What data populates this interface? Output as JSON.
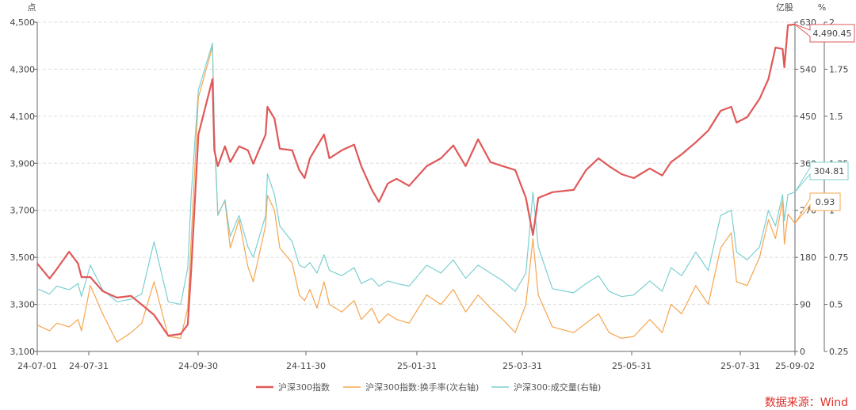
{
  "chart_data": {
    "type": "line",
    "title": "",
    "left_axis": {
      "unit": "点",
      "ylim": [
        3100,
        4500
      ],
      "ticks": [
        "3,100",
        "3,300",
        "3,500",
        "3,700",
        "3,900",
        "4,100",
        "4,300",
        "4,500"
      ]
    },
    "right_axis": {
      "unit": "亿股",
      "ylim": [
        0,
        630
      ],
      "ticks": [
        "0",
        "90",
        "180",
        "270",
        "360",
        "450",
        "540",
        "630"
      ]
    },
    "secondary_right_axis": {
      "unit": "%",
      "ylim": [
        0.25,
        2
      ],
      "ticks": [
        "0.25",
        "0.5",
        "0.75",
        "1",
        "1.25",
        "1.5",
        "1.75",
        "2"
      ]
    },
    "x_ticks": [
      "24-07-01",
      "24-07-31",
      "24-09-30",
      "24-11-30",
      "25-01-31",
      "25-03-31",
      "25-05-31",
      "25-07-31",
      "25-09-02"
    ],
    "grid": "horizontal dashed",
    "legend_placement": "bottom",
    "colors": {
      "index": "#e05858",
      "turnover": "#f5a54f",
      "volume": "#7ccfd0"
    },
    "series": [
      {
        "name": "沪深300指数",
        "axis": "left",
        "last_label": "4,490.45"
      },
      {
        "name": "沪深300指数:换手率(次右轴)",
        "axis": "secondary_right",
        "last_label": "0.93"
      },
      {
        "name": "沪深300:成交量(右轴)",
        "axis": "right",
        "last_label": "304.81"
      }
    ],
    "points": [
      [
        "2024-07-01",
        3474,
        0.39,
        120
      ],
      [
        "2024-07-08",
        3410,
        0.36,
        110
      ],
      [
        "2024-07-12",
        3450,
        0.4,
        125
      ],
      [
        "2024-07-19",
        3524,
        0.38,
        118
      ],
      [
        "2024-07-24",
        3474,
        0.42,
        130
      ],
      [
        "2024-07-26",
        3416,
        0.36,
        105
      ],
      [
        "2024-07-31",
        3416,
        0.6,
        165
      ],
      [
        "2024-08-07",
        3356,
        0.45,
        118
      ],
      [
        "2024-08-15",
        3329,
        0.3,
        95
      ],
      [
        "2024-08-23",
        3336,
        0.35,
        100
      ],
      [
        "2024-08-29",
        3299,
        0.4,
        110
      ],
      [
        "2024-09-05",
        3255,
        0.62,
        210
      ],
      [
        "2024-09-13",
        3167,
        0.33,
        95
      ],
      [
        "2024-09-20",
        3174,
        0.32,
        90
      ],
      [
        "2024-09-24",
        3214,
        0.48,
        160
      ],
      [
        "2024-09-26",
        3450,
        0.85,
        300
      ],
      [
        "2024-09-30",
        4022,
        1.6,
        500
      ],
      [
        "2024-10-08",
        4258,
        1.87,
        590
      ],
      [
        "2024-10-09",
        3955,
        1.4,
        430
      ],
      [
        "2024-10-11",
        3888,
        0.98,
        260
      ],
      [
        "2024-10-15",
        3972,
        1.05,
        290
      ],
      [
        "2024-10-18",
        3905,
        0.8,
        220
      ],
      [
        "2024-10-23",
        3972,
        0.95,
        260
      ],
      [
        "2024-10-28",
        3955,
        0.7,
        200
      ],
      [
        "2024-10-31",
        3898,
        0.62,
        180
      ],
      [
        "2024-11-07",
        4022,
        0.92,
        260
      ],
      [
        "2024-11-08",
        4140,
        1.08,
        340
      ],
      [
        "2024-11-12",
        4090,
        1.0,
        300
      ],
      [
        "2024-11-15",
        3962,
        0.8,
        240
      ],
      [
        "2024-11-22",
        3955,
        0.72,
        210
      ],
      [
        "2024-11-26",
        3871,
        0.55,
        165
      ],
      [
        "2024-11-29",
        3837,
        0.52,
        160
      ],
      [
        "2024-12-02",
        3921,
        0.58,
        170
      ],
      [
        "2024-12-06",
        3972,
        0.48,
        150
      ],
      [
        "2024-12-10",
        4022,
        0.62,
        185
      ],
      [
        "2024-12-13",
        3921,
        0.5,
        155
      ],
      [
        "2024-12-20",
        3955,
        0.46,
        145
      ],
      [
        "2024-12-27",
        3979,
        0.52,
        160
      ],
      [
        "2024-12-31",
        3888,
        0.42,
        130
      ],
      [
        "2025-01-06",
        3787,
        0.48,
        140
      ],
      [
        "2025-01-10",
        3736,
        0.4,
        125
      ],
      [
        "2025-01-15",
        3814,
        0.45,
        135
      ],
      [
        "2025-01-20",
        3834,
        0.42,
        130
      ],
      [
        "2025-01-27",
        3804,
        0.4,
        125
      ],
      [
        "2025-02-06",
        3888,
        0.55,
        165
      ],
      [
        "2025-02-14",
        3921,
        0.5,
        150
      ],
      [
        "2025-02-21",
        3976,
        0.58,
        175
      ],
      [
        "2025-02-28",
        3888,
        0.46,
        140
      ],
      [
        "2025-03-07",
        4002,
        0.55,
        165
      ],
      [
        "2025-03-14",
        3905,
        0.48,
        150
      ],
      [
        "2025-03-21",
        3888,
        0.42,
        135
      ],
      [
        "2025-03-28",
        3871,
        0.35,
        115
      ],
      [
        "2025-04-03",
        3753,
        0.5,
        150
      ],
      [
        "2025-04-07",
        3595,
        0.85,
        305
      ],
      [
        "2025-04-10",
        3753,
        0.55,
        200
      ],
      [
        "2025-04-18",
        3777,
        0.38,
        120
      ],
      [
        "2025-04-30",
        3787,
        0.35,
        112
      ],
      [
        "2025-05-07",
        3871,
        0.4,
        130
      ],
      [
        "2025-05-14",
        3921,
        0.45,
        145
      ],
      [
        "2025-05-20",
        3888,
        0.35,
        115
      ],
      [
        "2025-05-27",
        3854,
        0.32,
        105
      ],
      [
        "2025-06-03",
        3837,
        0.33,
        108
      ],
      [
        "2025-06-12",
        3878,
        0.42,
        135
      ],
      [
        "2025-06-19",
        3848,
        0.35,
        115
      ],
      [
        "2025-06-24",
        3905,
        0.5,
        160
      ],
      [
        "2025-06-30",
        3938,
        0.45,
        145
      ],
      [
        "2025-07-08",
        3989,
        0.6,
        190
      ],
      [
        "2025-07-15",
        4039,
        0.5,
        155
      ],
      [
        "2025-07-22",
        4123,
        0.8,
        260
      ],
      [
        "2025-07-28",
        4140,
        0.88,
        270
      ],
      [
        "2025-07-31",
        4073,
        0.62,
        190
      ],
      [
        "2025-08-06",
        4096,
        0.6,
        175
      ],
      [
        "2025-08-13",
        4174,
        0.75,
        200
      ],
      [
        "2025-08-18",
        4258,
        0.95,
        270
      ],
      [
        "2025-08-22",
        4392,
        0.85,
        240
      ],
      [
        "2025-08-26",
        4386,
        1.05,
        300
      ],
      [
        "2025-08-27",
        4308,
        0.82,
        250
      ],
      [
        "2025-08-29",
        4487,
        0.98,
        300
      ],
      [
        "2025-09-02",
        4490.45,
        0.93,
        304.81
      ]
    ],
    "x_range": [
      "2024-07-01",
      "2025-09-02"
    ]
  },
  "source": "数据来源：Wind"
}
